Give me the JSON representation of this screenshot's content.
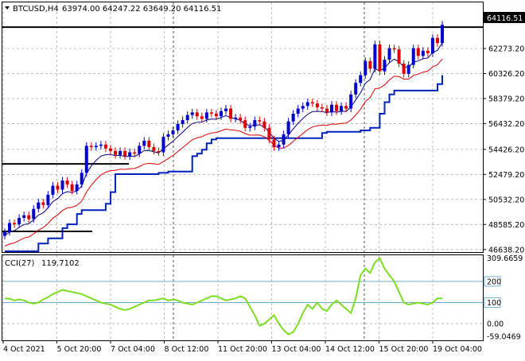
{
  "header": {
    "symbol_label": "BTCUSD,H4",
    "ohlc_label": "63974.00 64247.22 63649.20 64116.51",
    "menu_icon": "triangle-down-icon"
  },
  "price_panel": {
    "current_price_label": "64116.51",
    "y_ticks": [
      {
        "value": 62273.2,
        "label": "62273.20"
      },
      {
        "value": 60326.2,
        "label": "60326.20"
      },
      {
        "value": 58379.2,
        "label": "58379.20"
      },
      {
        "value": 56432.2,
        "label": "56432.20"
      },
      {
        "value": 54426.2,
        "label": "54426.20"
      },
      {
        "value": 52479.2,
        "label": "52479.20"
      },
      {
        "value": 50532.2,
        "label": "50532.20"
      },
      {
        "value": 48585.2,
        "label": "48585.20"
      },
      {
        "value": 46638.2,
        "label": "46638.20"
      }
    ],
    "y_range": [
      46500,
      65800
    ]
  },
  "indicator_panel": {
    "name_label": "CCI(27)",
    "value_label": "119.7102",
    "y_ticks": [
      {
        "value": 309.6659,
        "label": "309.6659"
      },
      {
        "value": 200,
        "label": "200"
      },
      {
        "value": 100,
        "label": "100"
      },
      {
        "value": 0,
        "label": "0.00"
      },
      {
        "value": -59.0469,
        "label": "-59.0469"
      }
    ],
    "y_range": [
      -75,
      320
    ],
    "levels": [
      200,
      100
    ]
  },
  "x_axis": {
    "labels": [
      "4 Oct 2021",
      "5 Oct 20:00",
      "7 Oct 04:00",
      "8 Oct 12:00",
      "11 Oct 20:00",
      "13 Oct 04:00",
      "14 Oct 12:00",
      "15 Oct 20:00",
      "19 Oct 04:00"
    ],
    "bar_count": 92
  },
  "colors": {
    "up_candle": "#0000cc",
    "down_candle": "#dd0000",
    "fast_ma": "#000080",
    "slow_ma": "#e00000",
    "trailing_line": "#0022bb",
    "cci_line": "#7ddd22",
    "cci_level_line": "#5aa0c8",
    "horizontal_line": "#000000",
    "grid": "#b0b0b0"
  },
  "chart_data": {
    "type": "candlestick",
    "title": "BTCUSD,H4",
    "series": [
      {
        "name": "BTCUSD,H4",
        "close": [
          48000,
          48700,
          48600,
          49100,
          49300,
          49000,
          49800,
          50300,
          50100,
          50900,
          51600,
          51300,
          52000,
          51700,
          51200,
          51700,
          52600,
          54700,
          54600,
          54700,
          54800,
          54500,
          54300,
          54000,
          54300,
          53900,
          54200,
          54100,
          54700,
          55100,
          54600,
          54300,
          54200,
          55400,
          55600,
          55900,
          56400,
          56700,
          57100,
          57300,
          57000,
          56800,
          57300,
          57200,
          57000,
          57400,
          57600,
          56800,
          56900,
          56700,
          56100,
          56200,
          56700,
          56600,
          56100,
          55200,
          54600,
          54800,
          55600,
          56600,
          57200,
          57600,
          57800,
          58100,
          58000,
          57700,
          57600,
          57300,
          57900,
          57400,
          57800,
          57600,
          58700,
          59600,
          60200,
          61300,
          60700,
          62600,
          60500,
          61400,
          62300,
          62200,
          61100,
          60300,
          61000,
          62300,
          61700,
          62100,
          61900,
          63100,
          62700,
          64117
        ],
        "ylabel": "",
        "ylim": [
          46500,
          65800
        ]
      }
    ],
    "horizontal_lines": [
      63940,
      53300,
      48050
    ],
    "cci": {
      "name": "CCI(27)",
      "last": 119.7102,
      "values": [
        120,
        118,
        110,
        115,
        110,
        100,
        95,
        100,
        115,
        125,
        140,
        150,
        160,
        155,
        150,
        145,
        140,
        130,
        120,
        110,
        100,
        95,
        90,
        80,
        70,
        65,
        70,
        80,
        90,
        100,
        110,
        110,
        115,
        120,
        110,
        115,
        110,
        100,
        95,
        90,
        100,
        110,
        120,
        130,
        130,
        120,
        110,
        115,
        120,
        130,
        120,
        80,
        40,
        -10,
        0,
        20,
        40,
        0,
        -30,
        -50,
        -40,
        0,
        50,
        90,
        70,
        100,
        70,
        60,
        90,
        110,
        90,
        70,
        50,
        120,
        230,
        260,
        240,
        290,
        310,
        260,
        230,
        200,
        150,
        100,
        90,
        95,
        100,
        95,
        90,
        100,
        120,
        119.7
      ]
    },
    "x_tick_labels": [
      "4 Oct 2021",
      "5 Oct 20:00",
      "7 Oct 04:00",
      "8 Oct 12:00",
      "11 Oct 20:00",
      "13 Oct 04:00",
      "14 Oct 12:00",
      "15 Oct 20:00",
      "19 Oct 04:00"
    ],
    "grid": true
  }
}
